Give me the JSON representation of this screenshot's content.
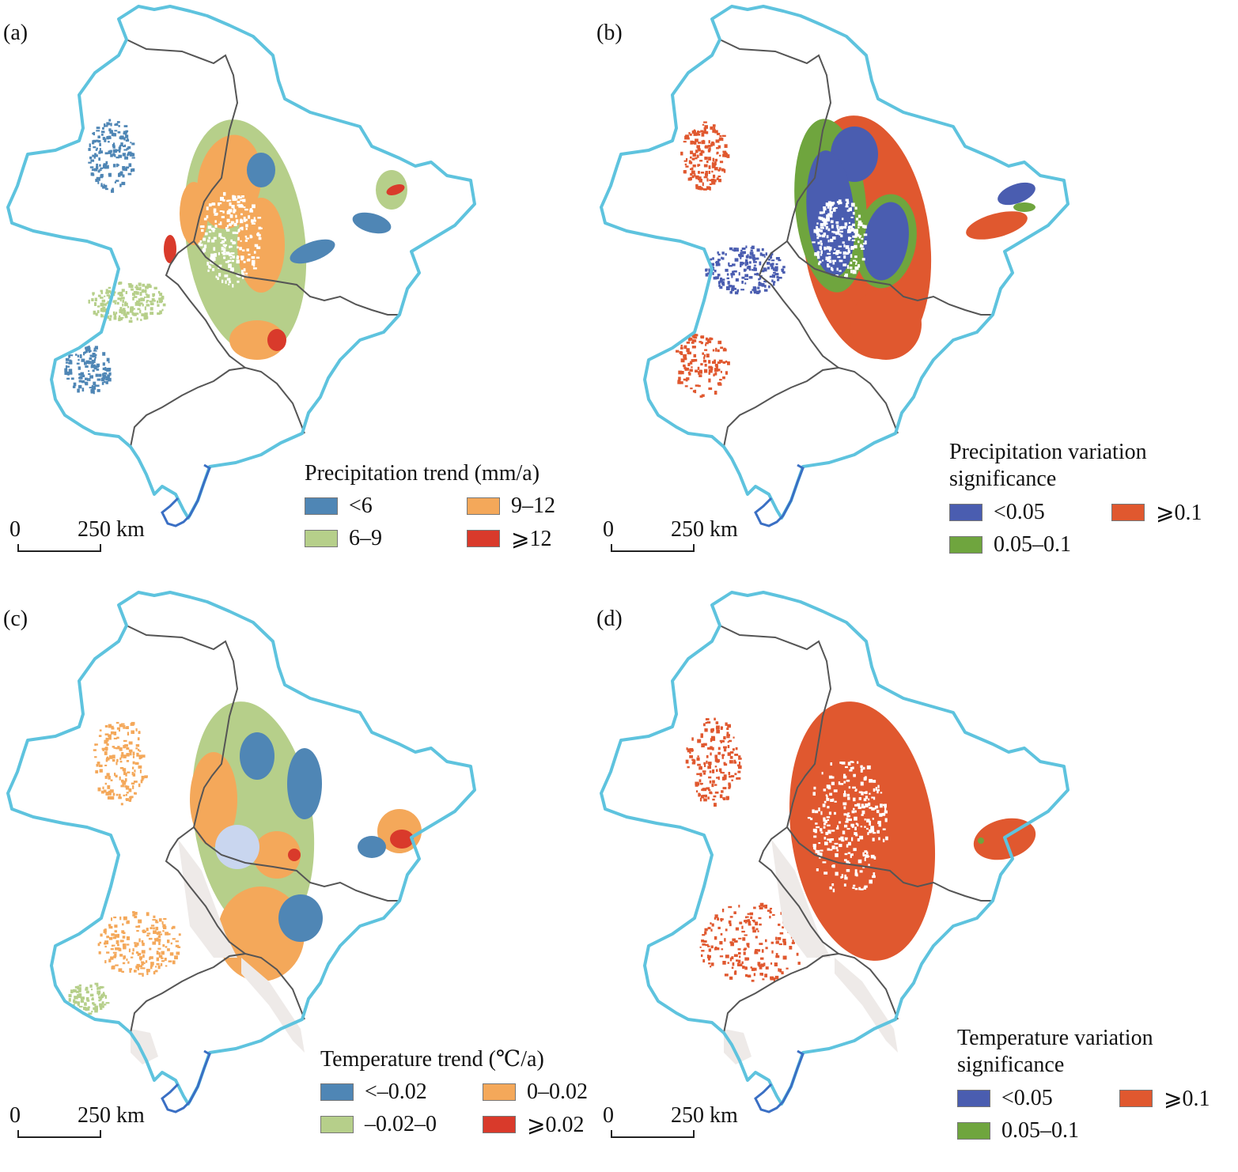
{
  "colors": {
    "land_boundary": "#5ec3de",
    "coast": "#3a6fc4",
    "province_boundary": "#555555",
    "masked_area": "#eeeae8"
  },
  "scalebar": {
    "zero": "0",
    "distance": "250 km"
  },
  "panels": [
    {
      "label": "(a)",
      "legend_title": "Precipitation trend (mm/a)",
      "legend": [
        {
          "label": "<6",
          "color": "#4f86b5"
        },
        {
          "label": "9–12",
          "color": "#f4a85a"
        },
        {
          "label": "6–9",
          "color": "#b6cf8a"
        },
        {
          "label": "⩾12",
          "color": "#d93a2b"
        }
      ],
      "masked": false
    },
    {
      "label": "(b)",
      "legend_title": "Precipitation variation",
      "legend_title_2": "significance",
      "legend": [
        {
          "label": "<0.05",
          "color": "#4a5db0"
        },
        {
          "label": "⩾0.1",
          "color": "#e0582f"
        },
        {
          "label": "0.05–0.1",
          "color": "#6fa53e"
        }
      ],
      "masked": false
    },
    {
      "label": "(c)",
      "legend_title": "Temperature trend (℃/a)",
      "legend": [
        {
          "label": "<–0.02",
          "color": "#4f86b5"
        },
        {
          "label": "0–0.02",
          "color": "#f4a85a"
        },
        {
          "label": "–0.02–0",
          "color": "#b6cf8a"
        },
        {
          "label": "⩾0.02",
          "color": "#d93a2b"
        }
      ],
      "masked": true
    },
    {
      "label": "(d)",
      "legend_title": "Temperature variation",
      "legend_title_2": "significance",
      "legend": [
        {
          "label": "<0.05",
          "color": "#4a5db0"
        },
        {
          "label": "⩾0.1",
          "color": "#e0582f"
        },
        {
          "label": "0.05–0.1",
          "color": "#6fa53e"
        }
      ],
      "masked": true
    }
  ]
}
